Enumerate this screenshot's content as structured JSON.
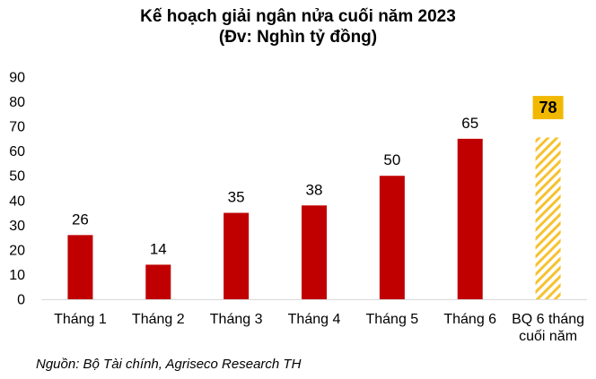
{
  "chart_data": {
    "type": "bar",
    "title": "Kế hoạch giải ngân nửa cuối năm 2023",
    "subtitle": "(Đv: Nghìn tỷ đồng)",
    "categories": [
      "Tháng 1",
      "Tháng 2",
      "Tháng 3",
      "Tháng 4",
      "Tháng 5",
      "Tháng 6",
      "BQ 6 tháng cuối năm"
    ],
    "values": [
      26,
      14,
      35,
      38,
      50,
      65,
      78
    ],
    "data_labels": [
      "26",
      "14",
      "35",
      "38",
      "50",
      "65",
      "78"
    ],
    "yticks": [
      "0",
      "10",
      "20",
      "30",
      "40",
      "50",
      "60",
      "70",
      "80",
      "90"
    ],
    "ylim": [
      0,
      90
    ],
    "xlabel": "",
    "ylabel": "",
    "grid": false,
    "legend": "none",
    "colors": {
      "bar": "#C00000",
      "highlight_bar": "#F5C230",
      "highlight_label_box": "#F2B800"
    },
    "highlight_index": 6,
    "highlight_pattern": "diagonal-hatch"
  },
  "source": "Nguồn: Bộ Tài chính, Agriseco Research TH"
}
